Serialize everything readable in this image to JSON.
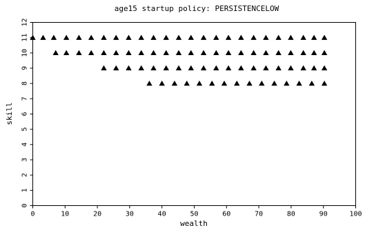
{
  "chart_data": {
    "type": "scatter",
    "title": "age15 startup policy: PERSISTENCELOW",
    "xlabel": "wealth",
    "ylabel": "skill",
    "xlim": [
      0,
      100
    ],
    "ylim": [
      0,
      12
    ],
    "xticks": [
      0,
      10,
      20,
      30,
      40,
      50,
      60,
      70,
      80,
      90,
      100
    ],
    "yticks": [
      0,
      1,
      2,
      3,
      4,
      5,
      6,
      7,
      8,
      9,
      10,
      11,
      12
    ],
    "grid": false,
    "marker": "triangle",
    "marker_color": "#000000",
    "series": [
      {
        "points": [
          [
            0,
            11
          ],
          [
            3.2,
            11
          ],
          [
            6.5,
            11
          ],
          [
            10.4,
            11
          ],
          [
            14.3,
            11
          ],
          [
            18.1,
            11
          ],
          [
            22,
            11
          ],
          [
            25.8,
            11
          ],
          [
            29.7,
            11
          ],
          [
            33.6,
            11
          ],
          [
            37.4,
            11
          ],
          [
            41.3,
            11
          ],
          [
            45.2,
            11
          ],
          [
            49,
            11
          ],
          [
            52.9,
            11
          ],
          [
            56.8,
            11
          ],
          [
            60.6,
            11
          ],
          [
            64.5,
            11
          ],
          [
            68.4,
            11
          ],
          [
            72.2,
            11
          ],
          [
            76.1,
            11
          ],
          [
            79.9,
            11
          ],
          [
            83.8,
            11
          ],
          [
            87.1,
            11
          ],
          [
            90.3,
            11
          ],
          [
            7.1,
            10
          ],
          [
            10.4,
            10
          ],
          [
            14.3,
            10
          ],
          [
            18.1,
            10
          ],
          [
            22,
            10
          ],
          [
            25.8,
            10
          ],
          [
            29.7,
            10
          ],
          [
            33.6,
            10
          ],
          [
            37.4,
            10
          ],
          [
            41.3,
            10
          ],
          [
            45.2,
            10
          ],
          [
            49,
            10
          ],
          [
            52.9,
            10
          ],
          [
            56.8,
            10
          ],
          [
            60.6,
            10
          ],
          [
            64.5,
            10
          ],
          [
            68.4,
            10
          ],
          [
            72.2,
            10
          ],
          [
            76.1,
            10
          ],
          [
            79.9,
            10
          ],
          [
            83.8,
            10
          ],
          [
            87.1,
            10
          ],
          [
            90.3,
            10
          ],
          [
            22,
            9
          ],
          [
            25.8,
            9
          ],
          [
            29.7,
            9
          ],
          [
            33.6,
            9
          ],
          [
            37.4,
            9
          ],
          [
            41.3,
            9
          ],
          [
            45.2,
            9
          ],
          [
            49,
            9
          ],
          [
            52.9,
            9
          ],
          [
            56.8,
            9
          ],
          [
            60.6,
            9
          ],
          [
            64.5,
            9
          ],
          [
            68.4,
            9
          ],
          [
            72.2,
            9
          ],
          [
            76.1,
            9
          ],
          [
            79.9,
            9
          ],
          [
            83.8,
            9
          ],
          [
            87.1,
            9
          ],
          [
            90.3,
            9
          ],
          [
            36.1,
            8
          ],
          [
            40,
            8
          ],
          [
            43.9,
            8
          ],
          [
            47.7,
            8
          ],
          [
            51.6,
            8
          ],
          [
            55.5,
            8
          ],
          [
            59.3,
            8
          ],
          [
            63.2,
            8
          ],
          [
            67.1,
            8
          ],
          [
            70.9,
            8
          ],
          [
            74.8,
            8
          ],
          [
            78.6,
            8
          ],
          [
            82.5,
            8
          ],
          [
            86.4,
            8
          ],
          [
            90.3,
            8
          ]
        ]
      }
    ]
  }
}
